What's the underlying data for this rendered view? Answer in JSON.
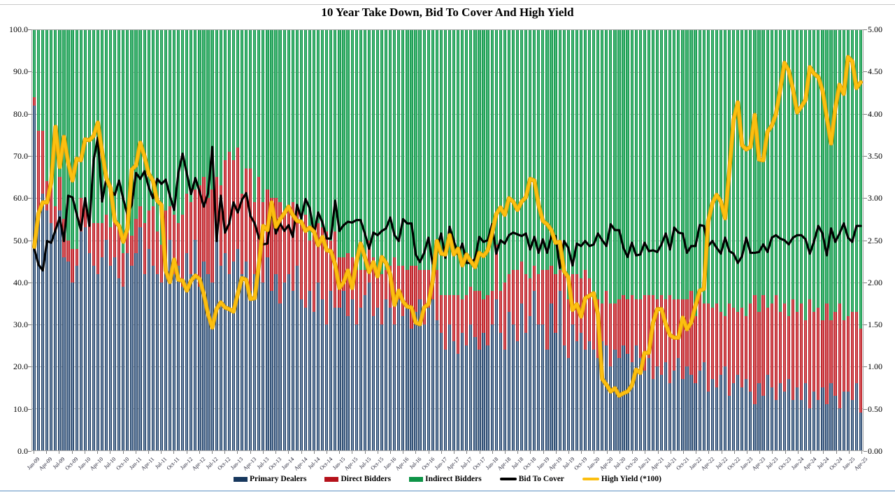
{
  "title": "10 Year Take Down, Bid To Cover And High Yield",
  "axes": {
    "left_ticks": [
      "100.0",
      "90.0",
      "80.0",
      "70.0",
      "60.0",
      "50.0",
      "40.0",
      "30.0",
      "20.0",
      "10.0",
      "0.0"
    ],
    "right_ticks": [
      "5.00",
      "4.50",
      "4.00",
      "3.50",
      "3.00",
      "2.50",
      "2.00",
      "1.50",
      "1.00",
      "0.50",
      "0.00"
    ]
  },
  "legend": {
    "items": [
      {
        "label": "Primary Dealers",
        "type": "bar",
        "color": "#17375d"
      },
      {
        "label": "Direct Bidders",
        "type": "bar",
        "color": "#b5121b"
      },
      {
        "label": "Indirect Bidders",
        "type": "bar",
        "color": "#0e9447"
      },
      {
        "label": "Bid To Cover",
        "type": "line",
        "color": "#000000"
      },
      {
        "label": "High Yield (*100)",
        "type": "line",
        "color": "#fcbf10"
      }
    ]
  },
  "colors": {
    "primary_dealers": "#17375d",
    "direct_bidders": "#b5121b",
    "indirect_bidders": "#0e9447",
    "bid_to_cover": "#000000",
    "high_yield": "#fcbf10",
    "high_yield_edge": "#d99b00",
    "gridline": "#bdbdbd"
  },
  "chart_data": {
    "type": "bar",
    "subtype": "100pct-stacked-bars-with-two-lines",
    "title": "10 Year Take Down, Bid To Cover And High Yield",
    "x_range": "monthly auctions Jan-09 through Apr-25 (196 bars)",
    "left_axis": {
      "min": 0,
      "max": 100,
      "step": 10
    },
    "right_axis": {
      "min": 0,
      "max": 5,
      "step": 0.5
    },
    "grid": "horizontal dashed",
    "legend_position": "bottom center",
    "indirect_rule": "indirect = 100 - primary - direct (bars stack to 100)",
    "x_tick_labels": [
      "Jan-09",
      "Apr-09",
      "Jul-09",
      "Oct-09",
      "Jan-10",
      "Apr-10",
      "Jul-10",
      "Oct-10",
      "Jan-11",
      "Apr-11",
      "Jul-11",
      "Oct-11",
      "Jan-12",
      "Apr-12",
      "Jul-12",
      "Oct-12",
      "Jan-13",
      "Apr-13",
      "Jul-13",
      "Oct-13",
      "Jan-14",
      "Apr-14",
      "Jul-14",
      "Oct-14",
      "Jan-15",
      "Apr-15",
      "Jul-15",
      "Oct-15",
      "Jan-16",
      "Apr-16",
      "Jul-16",
      "Oct-16",
      "Jan-17",
      "Apr-17",
      "Jul-17",
      "Oct-17",
      "Jan-18",
      "Apr-18",
      "Jul-18",
      "Oct-18",
      "Jan-19",
      "Apr-19",
      "Jul-19",
      "Oct-19",
      "Jan-20",
      "Apr-20",
      "Jul-20",
      "Oct-20",
      "Jan-21",
      "Apr-21",
      "Jul-21",
      "Oct-21",
      "Jan-22",
      "Apr-22",
      "Jul-22",
      "Oct-22",
      "Jan-23",
      "Apr-23",
      "Jul-23",
      "Oct-23",
      "Jan-24",
      "Apr-24",
      "Jul-24",
      "Oct-24",
      "Jan-25",
      "Apr-25"
    ],
    "series": [
      {
        "name": "Primary Dealers",
        "type": "stacked-bar",
        "axis": "left",
        "values": [
          82,
          56,
          61,
          57,
          54,
          52,
          57,
          46,
          45,
          40,
          44,
          52,
          53,
          47,
          44,
          42,
          46,
          50,
          44,
          46,
          41,
          39,
          47,
          44,
          47,
          53,
          42,
          48,
          44,
          42,
          40,
          45,
          50,
          42,
          44,
          39,
          47,
          42,
          50,
          39,
          45,
          42,
          40,
          51,
          44,
          47,
          42,
          45,
          48,
          42,
          45,
          38,
          42,
          44,
          40,
          46,
          38,
          42,
          35,
          40,
          42,
          38,
          44,
          36,
          34,
          38,
          33,
          40,
          36,
          30,
          38,
          34,
          34,
          38,
          32,
          36,
          30,
          34,
          37,
          40,
          32,
          34,
          30,
          36,
          34,
          30,
          36,
          32,
          34,
          29,
          33,
          36,
          30,
          34,
          36,
          31,
          28,
          24,
          30,
          26,
          23,
          28,
          25,
          30,
          27,
          24,
          28,
          25,
          30,
          36,
          28,
          24,
          33,
          30,
          26,
          35,
          28,
          32,
          38,
          30,
          30,
          24,
          35,
          28,
          38,
          25,
          22,
          30,
          26,
          28,
          24,
          26,
          24,
          22,
          26,
          25,
          20,
          24,
          22,
          25,
          23,
          21,
          25,
          22,
          19,
          22,
          17,
          20,
          18,
          21,
          16,
          19,
          22,
          17,
          20,
          18,
          16,
          19,
          21,
          14,
          17,
          15,
          18,
          20,
          13,
          16,
          18,
          15,
          17,
          14,
          11,
          16,
          13,
          18,
          15,
          12,
          16,
          14,
          17,
          12,
          15,
          12,
          16,
          10,
          14,
          12,
          15,
          11,
          16,
          13,
          10,
          14,
          14,
          12,
          16,
          9
        ]
      },
      {
        "name": "Direct Bidders",
        "type": "stacked-bar",
        "axis": "left",
        "values": [
          2,
          20,
          15,
          7,
          9,
          6,
          8,
          9,
          5,
          8,
          4,
          8,
          5,
          9,
          10,
          12,
          8,
          6,
          9,
          10,
          12,
          8,
          9,
          7,
          8,
          5,
          12,
          9,
          14,
          10,
          9,
          12,
          8,
          14,
          10,
          17,
          14,
          17,
          12,
          24,
          20,
          18,
          22,
          14,
          19,
          22,
          29,
          24,
          24,
          19,
          22,
          29,
          17,
          21,
          19,
          16,
          22,
          18,
          24,
          16,
          16,
          21,
          14,
          18,
          22,
          12,
          19,
          14,
          17,
          22,
          12,
          18,
          12,
          8,
          15,
          10,
          13,
          9,
          6,
          10,
          14,
          8,
          12,
          7,
          10,
          16,
          8,
          12,
          9,
          15,
          11,
          7,
          13,
          9,
          6,
          12,
          9,
          13,
          7,
          11,
          14,
          8,
          12,
          9,
          11,
          14,
          8,
          12,
          8,
          13,
          10,
          16,
          9,
          13,
          17,
          10,
          14,
          9,
          6,
          12,
          13,
          19,
          9,
          14,
          5,
          17,
          14,
          12,
          16,
          13,
          19,
          15,
          12,
          14,
          9,
          13,
          15,
          11,
          14,
          12,
          13,
          16,
          11,
          14,
          18,
          15,
          20,
          16,
          19,
          15,
          21,
          17,
          14,
          19,
          16,
          20,
          16,
          19,
          14,
          21,
          17,
          20,
          15,
          12,
          22,
          18,
          15,
          19,
          15,
          21,
          26,
          17,
          24,
          16,
          20,
          25,
          17,
          21,
          15,
          24,
          18,
          23,
          15,
          26,
          19,
          22,
          16,
          24,
          15,
          20,
          25,
          17,
          18,
          21,
          17,
          20
        ]
      },
      {
        "name": "Indirect Bidders",
        "type": "stacked-bar",
        "axis": "left",
        "values_rule": "100 - primary - direct"
      },
      {
        "name": "Bid To Cover",
        "type": "line",
        "axis": "right",
        "values": [
          2.4,
          2.21,
          2.14,
          2.49,
          2.47,
          2.62,
          2.77,
          2.49,
          3.03,
          3.01,
          2.81,
          2.62,
          3.0,
          2.67,
          3.45,
          3.72,
          2.96,
          3.24,
          3.09,
          3.04,
          3.21,
          2.99,
          2.8,
          2.92,
          3.3,
          3.23,
          3.32,
          3.13,
          3.0,
          3.23,
          3.17,
          3.22,
          3.03,
          2.86,
          3.3,
          3.53,
          3.29,
          3.05,
          3.24,
          3.08,
          2.9,
          3.06,
          3.61,
          2.49,
          3.03,
          2.59,
          2.7,
          2.95,
          2.83,
          2.98,
          3.06,
          2.79,
          2.7,
          2.53,
          2.45,
          2.46,
          2.86,
          2.58,
          2.7,
          2.61,
          2.68,
          2.54,
          2.92,
          2.76,
          2.99,
          2.88,
          2.57,
          2.83,
          2.71,
          2.52,
          2.52,
          2.97,
          2.61,
          2.68,
          2.72,
          2.71,
          2.74,
          2.74,
          2.58,
          2.4,
          2.59,
          2.56,
          2.61,
          2.64,
          2.77,
          2.56,
          2.49,
          2.75,
          2.7,
          2.7,
          2.33,
          2.24,
          2.35,
          2.53,
          2.22,
          2.39,
          2.58,
          2.29,
          2.66,
          2.49,
          2.33,
          2.46,
          2.23,
          2.23,
          2.28,
          2.54,
          2.48,
          2.5,
          2.69,
          2.34,
          2.5,
          2.46,
          2.56,
          2.59,
          2.57,
          2.55,
          2.58,
          2.39,
          2.54,
          2.35,
          2.51,
          2.35,
          2.55,
          2.55,
          2.17,
          2.49,
          2.41,
          2.2,
          2.46,
          2.43,
          2.49,
          2.43,
          2.45,
          2.58,
          2.5,
          2.43,
          2.69,
          2.62,
          2.62,
          2.41,
          2.3,
          2.47,
          2.32,
          2.33,
          2.47,
          2.37,
          2.38,
          2.36,
          2.45,
          2.58,
          2.39,
          2.65,
          2.59,
          2.58,
          2.35,
          2.43,
          2.43,
          2.68,
          2.67,
          2.43,
          2.49,
          2.41,
          2.34,
          2.53,
          2.37,
          2.34,
          2.23,
          2.31,
          2.53,
          2.35,
          2.35,
          2.36,
          2.45,
          2.36,
          2.53,
          2.56,
          2.52,
          2.5,
          2.45,
          2.53,
          2.56,
          2.56,
          2.51,
          2.34,
          2.49,
          2.67,
          2.58,
          2.32,
          2.64,
          2.48,
          2.58,
          2.7,
          2.53,
          2.48,
          2.67,
          2.67
        ]
      },
      {
        "name": "High Yield (*100)",
        "type": "line",
        "axis": "right",
        "values": [
          2.42,
          2.82,
          2.95,
          2.95,
          3.19,
          3.85,
          3.37,
          3.73,
          3.42,
          3.21,
          3.47,
          3.45,
          3.7,
          3.69,
          3.74,
          3.9,
          3.55,
          3.24,
          3.12,
          2.73,
          2.67,
          2.48,
          2.64,
          3.34,
          3.39,
          3.66,
          3.5,
          3.29,
          3.21,
          2.97,
          2.92,
          2.14,
          2.0,
          2.27,
          2.03,
          2.02,
          1.9,
          2.02,
          2.08,
          2.04,
          1.86,
          1.62,
          1.46,
          1.68,
          1.76,
          1.7,
          1.68,
          1.65,
          1.86,
          2.05,
          2.03,
          1.8,
          1.81,
          2.21,
          2.67,
          2.62,
          2.95,
          2.66,
          2.75,
          2.82,
          2.9,
          2.8,
          2.73,
          2.72,
          2.61,
          2.65,
          2.6,
          2.44,
          2.54,
          2.38,
          2.37,
          2.21,
          1.93,
          2.0,
          2.14,
          1.93,
          2.24,
          2.46,
          2.3,
          2.12,
          2.24,
          2.07,
          2.3,
          2.23,
          2.09,
          1.73,
          1.9,
          1.77,
          1.71,
          1.7,
          1.52,
          1.5,
          1.7,
          1.74,
          2.02,
          2.49,
          2.34,
          2.33,
          2.56,
          2.33,
          2.4,
          2.2,
          2.33,
          2.25,
          2.18,
          2.35,
          2.31,
          2.38,
          2.58,
          2.81,
          2.89,
          2.8,
          3.0,
          2.96,
          2.86,
          2.96,
          3.01,
          3.23,
          3.21,
          2.92,
          2.73,
          2.69,
          2.62,
          2.47,
          2.48,
          2.13,
          2.06,
          1.67,
          1.74,
          1.59,
          1.81,
          1.84,
          1.87,
          1.62,
          0.85,
          0.78,
          0.7,
          0.74,
          0.65,
          0.68,
          0.7,
          0.77,
          0.96,
          0.92,
          1.16,
          1.16,
          1.52,
          1.68,
          1.68,
          1.5,
          1.37,
          1.34,
          1.34,
          1.58,
          1.44,
          1.52,
          1.72,
          1.9,
          1.92,
          2.72,
          2.94,
          3.04,
          2.96,
          2.76,
          3.33,
          3.93,
          4.14,
          3.63,
          3.58,
          3.61,
          3.99,
          3.46,
          3.45,
          3.79,
          3.86,
          4.0,
          4.29,
          4.61,
          4.52,
          4.3,
          4.02,
          4.09,
          4.17,
          4.56,
          4.48,
          4.44,
          4.28,
          3.96,
          3.65,
          4.07,
          4.35,
          4.24,
          4.68,
          4.63,
          4.31,
          4.38
        ]
      }
    ]
  }
}
